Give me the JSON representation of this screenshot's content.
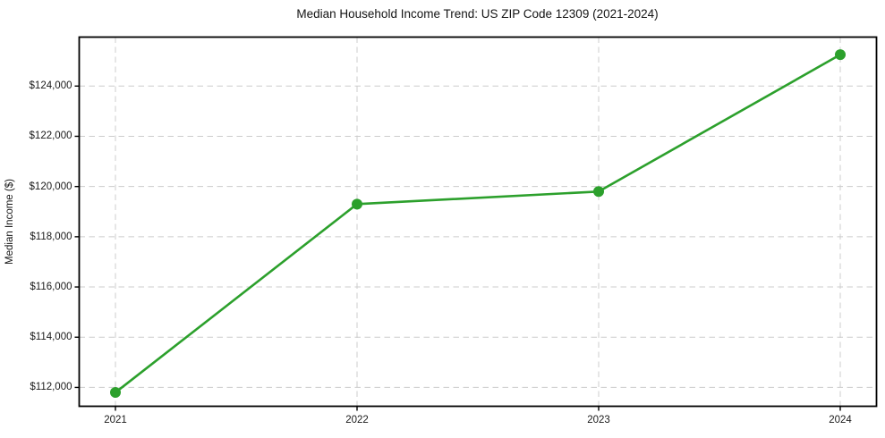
{
  "chart_data": {
    "type": "line",
    "title": "Median Household Income Trend: US ZIP Code 12309 (2021-2024)",
    "xlabel": "",
    "ylabel": "Median Income ($)",
    "x": [
      2021,
      2022,
      2023,
      2024
    ],
    "values": [
      111800,
      119300,
      119800,
      125250
    ],
    "xlim": [
      2020.85,
      2024.15
    ],
    "ylim": [
      111250,
      125950
    ],
    "xticks": [
      {
        "value": 2021,
        "label": "2021"
      },
      {
        "value": 2022,
        "label": "2022"
      },
      {
        "value": 2023,
        "label": "2023"
      },
      {
        "value": 2024,
        "label": "2024"
      }
    ],
    "yticks": [
      {
        "value": 112000,
        "label": "$112,000"
      },
      {
        "value": 114000,
        "label": "$114,000"
      },
      {
        "value": 116000,
        "label": "$116,000"
      },
      {
        "value": 118000,
        "label": "$118,000"
      },
      {
        "value": 120000,
        "label": "$120,000"
      },
      {
        "value": 122000,
        "label": "$122,000"
      },
      {
        "value": 124000,
        "label": "$124,000"
      }
    ],
    "grid": true,
    "legend": "none",
    "styles": {
      "line_color": "#2ca02c",
      "marker_color": "#2ca02c",
      "grid_color": "#cccccc",
      "axis_color": "#000000",
      "background_color": "#ffffff"
    }
  }
}
